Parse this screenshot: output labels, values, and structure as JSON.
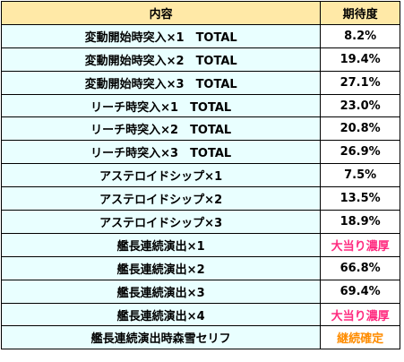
{
  "header": {
    "content": "内容",
    "rate": "期待度"
  },
  "rows": [
    {
      "content": "変動開始時突入×1　TOTAL",
      "rate": "8.2%",
      "rate_color": "#000000"
    },
    {
      "content": "変動開始時突入×2　TOTAL",
      "rate": "19.4%",
      "rate_color": "#000000"
    },
    {
      "content": "変動開始時突入×3　TOTAL",
      "rate": "27.1%",
      "rate_color": "#000000"
    },
    {
      "content": "リーチ時突入×1　TOTAL",
      "rate": "23.0%",
      "rate_color": "#000000"
    },
    {
      "content": "リーチ時突入×2　TOTAL",
      "rate": "20.8%",
      "rate_color": "#000000"
    },
    {
      "content": "リーチ時突入×3　TOTAL",
      "rate": "26.9%",
      "rate_color": "#000000"
    },
    {
      "content": "アステロイドシップ×1",
      "rate": "7.5%",
      "rate_color": "#000000"
    },
    {
      "content": "アステロイドシップ×2",
      "rate": "13.5%",
      "rate_color": "#000000"
    },
    {
      "content": "アステロイドシップ×3",
      "rate": "18.9%",
      "rate_color": "#000000"
    },
    {
      "content": "艦長連続演出×1",
      "rate": "大当り濃厚",
      "rate_color": "#ff2a7f"
    },
    {
      "content": "艦長連続演出×2",
      "rate": "66.8%",
      "rate_color": "#000000"
    },
    {
      "content": "艦長連続演出×3",
      "rate": "69.4%",
      "rate_color": "#000000"
    },
    {
      "content": "艦長連続演出×4",
      "rate": "大当り濃厚",
      "rate_color": "#ff2a7f"
    },
    {
      "content": "艦長連続演出時森雪セリフ",
      "rate": "継続確定",
      "rate_color": "#ff8c00"
    }
  ],
  "colors": {
    "header_bg": "#ffe9a7",
    "content_bg": "#e9ffff",
    "rate_bg": "#ffffff",
    "border": "#000000"
  }
}
